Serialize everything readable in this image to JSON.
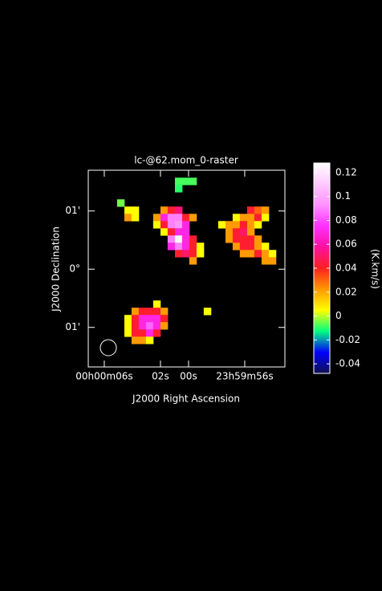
{
  "chart_data": {
    "type": "heatmap",
    "title": "lc-@62.mom_0-raster",
    "x_label": "J2000 Right Ascension",
    "y_label": "J2000 Declination",
    "colorbar_label": "(K.km/s)",
    "xlim": [
      7.14,
      -6.86
    ],
    "ylim": [
      -1.68,
      1.7
    ],
    "xticks": [
      {
        "value": 6,
        "label": "00h00m06s"
      },
      {
        "value": 2,
        "label": "02s"
      },
      {
        "value": 0,
        "label": "00s"
      },
      {
        "value": -4,
        "label": "23h59m56s"
      }
    ],
    "yticks": [
      {
        "value": 1,
        "label": "01'"
      },
      {
        "value": 0,
        "label": "0°"
      },
      {
        "value": -1,
        "label": "01'"
      }
    ],
    "zlim": [
      -0.048,
      0.128
    ],
    "zticks": [
      0.12,
      0.1,
      0.08,
      0.06,
      0.04,
      0.02,
      0,
      -0.02,
      -0.04
    ],
    "colorscale": [
      "#101050",
      "#0000ff",
      "#00ff80",
      "#ffff00",
      "#ff9900",
      "#ff2020",
      "#ff10a0",
      "#ff30ff",
      "#ff90ff",
      "#ffc8ff",
      "#ffffff"
    ],
    "x": [
      4.83,
      4.31,
      3.8,
      3.29,
      2.77,
      2.26,
      1.74,
      1.23,
      0.71,
      0.2,
      -0.31,
      -0.83,
      -1.34,
      -1.86,
      -2.37,
      -2.89,
      -3.4,
      -3.91,
      -4.43,
      -4.94,
      -5.46,
      -5.97
    ],
    "y": [
      1.51,
      1.386,
      1.262,
      1.138,
      1.014,
      0.889,
      0.765,
      0.641,
      0.517,
      0.393,
      0.269,
      0.145,
      0.021,
      -0.104,
      -0.228,
      -0.352,
      -0.476,
      -0.6,
      -0.724,
      -0.848,
      -0.972,
      -1.097,
      -1.221
    ],
    "values": [
      [
        null,
        null,
        null,
        null,
        null,
        null,
        null,
        null,
        -0.008,
        -0.008,
        -0.008,
        null,
        null,
        null,
        null,
        null,
        null,
        null,
        null,
        null,
        null,
        null
      ],
      [
        null,
        null,
        null,
        null,
        null,
        null,
        null,
        null,
        -0.01,
        null,
        null,
        null,
        null,
        null,
        null,
        null,
        null,
        null,
        null,
        null,
        null,
        null
      ],
      [
        null,
        null,
        null,
        null,
        null,
        null,
        null,
        null,
        null,
        null,
        null,
        null,
        null,
        null,
        null,
        null,
        null,
        null,
        null,
        null,
        null,
        null
      ],
      [
        -0.005,
        null,
        null,
        null,
        null,
        null,
        null,
        null,
        null,
        null,
        null,
        null,
        null,
        null,
        null,
        null,
        null,
        null,
        null,
        null,
        null,
        null
      ],
      [
        null,
        0.005,
        0.005,
        null,
        null,
        null,
        0.022,
        0.042,
        0.052,
        null,
        null,
        null,
        null,
        null,
        null,
        null,
        null,
        null,
        0.042,
        0.03,
        0.022,
        null
      ],
      [
        null,
        0.022,
        0.005,
        null,
        null,
        0.022,
        0.07,
        0.09,
        0.09,
        0.042,
        0.022,
        null,
        null,
        null,
        null,
        null,
        0.005,
        0.022,
        0.022,
        0.042,
        0.005,
        null
      ],
      [
        null,
        null,
        null,
        null,
        null,
        0.005,
        0.042,
        0.09,
        0.095,
        0.07,
        null,
        null,
        null,
        null,
        0.005,
        0.022,
        0.022,
        0.042,
        0.022,
        0.005,
        null,
        null
      ],
      [
        null,
        null,
        null,
        null,
        null,
        null,
        0.005,
        0.042,
        0.07,
        0.07,
        null,
        null,
        null,
        null,
        null,
        0.022,
        0.042,
        0.05,
        0.022,
        null,
        null,
        null
      ],
      [
        null,
        null,
        null,
        null,
        null,
        null,
        null,
        0.09,
        0.125,
        0.07,
        0.042,
        null,
        null,
        null,
        null,
        0.022,
        0.042,
        0.042,
        0.042,
        0.022,
        null,
        null
      ],
      [
        null,
        null,
        null,
        null,
        null,
        null,
        null,
        0.07,
        0.09,
        0.07,
        0.042,
        0.005,
        null,
        null,
        null,
        null,
        0.022,
        0.042,
        0.042,
        0.022,
        0.005,
        null
      ],
      [
        null,
        null,
        null,
        null,
        null,
        null,
        null,
        null,
        0.042,
        0.05,
        0.042,
        0.005,
        null,
        null,
        null,
        null,
        null,
        0.022,
        0.022,
        0.042,
        0.022,
        0.005
      ],
      [
        null,
        null,
        null,
        null,
        null,
        null,
        null,
        null,
        null,
        null,
        0.022,
        null,
        null,
        null,
        null,
        null,
        null,
        null,
        null,
        null,
        0.022,
        0.022
      ],
      [
        null,
        null,
        null,
        null,
        null,
        null,
        null,
        null,
        null,
        null,
        null,
        null,
        null,
        null,
        null,
        null,
        null,
        null,
        null,
        null,
        null,
        null
      ],
      [
        null,
        null,
        null,
        null,
        null,
        null,
        null,
        null,
        null,
        null,
        null,
        null,
        null,
        null,
        null,
        null,
        null,
        null,
        null,
        null,
        null,
        null
      ],
      [
        null,
        null,
        null,
        null,
        null,
        null,
        null,
        null,
        null,
        null,
        null,
        null,
        null,
        null,
        null,
        null,
        null,
        null,
        null,
        null,
        null,
        null
      ],
      [
        null,
        null,
        null,
        null,
        null,
        null,
        null,
        null,
        null,
        null,
        null,
        null,
        null,
        null,
        null,
        null,
        null,
        null,
        null,
        null,
        null,
        null
      ],
      [
        null,
        null,
        null,
        null,
        null,
        null,
        null,
        null,
        null,
        null,
        null,
        null,
        null,
        null,
        null,
        null,
        null,
        null,
        null,
        null,
        null,
        null
      ],
      [
        null,
        null,
        null,
        null,
        null,
        0.005,
        null,
        null,
        null,
        null,
        null,
        null,
        null,
        null,
        null,
        null,
        null,
        null,
        null,
        null,
        null,
        null
      ],
      [
        null,
        null,
        0.022,
        0.042,
        0.042,
        0.042,
        0.022,
        null,
        null,
        null,
        null,
        null,
        0.005,
        null,
        null,
        null,
        null,
        null,
        null,
        null,
        null,
        null
      ],
      [
        null,
        0.005,
        0.042,
        0.07,
        0.07,
        0.07,
        0.042,
        null,
        null,
        null,
        null,
        null,
        null,
        null,
        null,
        null,
        null,
        null,
        null,
        null,
        null,
        null
      ],
      [
        null,
        0.005,
        0.042,
        0.07,
        0.085,
        0.07,
        0.022,
        null,
        null,
        null,
        null,
        null,
        null,
        null,
        null,
        null,
        null,
        null,
        null,
        null,
        null,
        null
      ],
      [
        null,
        0.005,
        0.042,
        0.042,
        0.07,
        0.042,
        null,
        null,
        null,
        null,
        null,
        null,
        null,
        null,
        null,
        null,
        null,
        null,
        null,
        null,
        null,
        null
      ],
      [
        null,
        null,
        0.022,
        0.022,
        0.005,
        null,
        null,
        null,
        null,
        null,
        null,
        null,
        null,
        null,
        null,
        null,
        null,
        null,
        null,
        null,
        null,
        null
      ]
    ]
  }
}
